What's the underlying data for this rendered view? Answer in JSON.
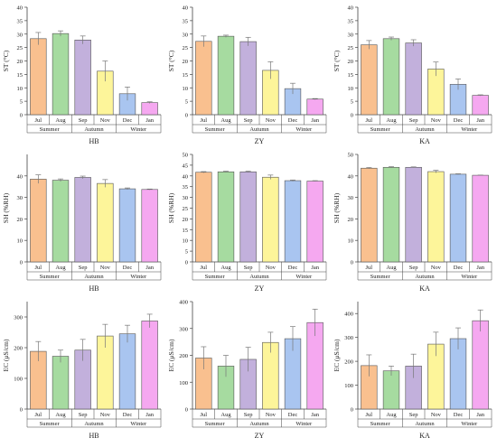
{
  "figure": {
    "months": [
      "Jul",
      "Aug",
      "Sep",
      "Nov",
      "Dec",
      "Jan"
    ],
    "seasons": [
      "Summer",
      "Autumn",
      "Winter"
    ],
    "bar_colors": [
      "#f9c08f",
      "#a6dba0",
      "#c2b0dc",
      "#fdf59a",
      "#a9c5f0",
      "#f5a8f0"
    ],
    "row_order": [
      "ST",
      "SH",
      "EC"
    ],
    "col_order": [
      "HB",
      "ZY",
      "KA"
    ]
  },
  "chart_data": [
    {
      "type": "bar",
      "row": "ST",
      "xlabel": "HB",
      "ylabel": "ST (°C)",
      "ylim": [
        0,
        40
      ],
      "ticks": [
        0,
        5,
        10,
        15,
        20,
        25,
        30,
        35,
        40
      ],
      "categories": [
        "Jul",
        "Aug",
        "Sep",
        "Nov",
        "Dec",
        "Jan"
      ],
      "values": [
        28.3,
        30.2,
        27.8,
        16.2,
        7.8,
        4.5
      ],
      "errors": [
        2.3,
        1.0,
        1.5,
        3.8,
        2.5,
        0.3
      ]
    },
    {
      "type": "bar",
      "row": "ST",
      "xlabel": "ZY",
      "ylabel": "ST (°C)",
      "ylim": [
        0,
        40
      ],
      "ticks": [
        0,
        5,
        10,
        15,
        20,
        25,
        30,
        35,
        40
      ],
      "categories": [
        "Jul",
        "Aug",
        "Sep",
        "Nov",
        "Dec",
        "Jan"
      ],
      "values": [
        27.3,
        29.2,
        27.2,
        16.5,
        9.7,
        5.8
      ],
      "errors": [
        2.0,
        0.4,
        1.6,
        3.2,
        2.0,
        0.2
      ]
    },
    {
      "type": "bar",
      "row": "ST",
      "xlabel": "KA",
      "ylabel": "ST (°C)",
      "ylim": [
        0,
        40
      ],
      "ticks": [
        0,
        5,
        10,
        15,
        20,
        25,
        30,
        35,
        40
      ],
      "categories": [
        "Jul",
        "Aug",
        "Sep",
        "Nov",
        "Dec",
        "Jan"
      ],
      "values": [
        26.0,
        28.3,
        26.7,
        17.0,
        11.3,
        7.2
      ],
      "errors": [
        1.6,
        0.6,
        1.2,
        2.6,
        2.0,
        0.2
      ]
    },
    {
      "type": "bar",
      "row": "SH",
      "xlabel": "HB",
      "ylabel": "SH (%RH)",
      "ylim": [
        0,
        50
      ],
      "ticks": [
        0,
        10,
        20,
        30,
        40
      ],
      "categories": [
        "Jul",
        "Aug",
        "Sep",
        "Nov",
        "Dec",
        "Jan"
      ],
      "values": [
        38.5,
        38.0,
        39.3,
        36.5,
        34.0,
        33.7
      ],
      "errors": [
        2.0,
        0.6,
        0.6,
        1.8,
        0.4,
        0.2
      ]
    },
    {
      "type": "bar",
      "row": "SH",
      "xlabel": "ZY",
      "ylabel": "SH (%RH)",
      "ylim": [
        0,
        50
      ],
      "ticks": [
        0,
        5,
        10,
        15,
        20,
        25,
        30,
        35,
        40,
        45,
        50
      ],
      "categories": [
        "Jul",
        "Aug",
        "Sep",
        "Nov",
        "Dec",
        "Jan"
      ],
      "values": [
        41.7,
        41.9,
        41.9,
        39.4,
        37.8,
        37.6
      ],
      "errors": [
        0.3,
        0.3,
        0.3,
        1.0,
        0.3,
        0.2
      ]
    },
    {
      "type": "bar",
      "row": "SH",
      "xlabel": "KA",
      "ylabel": "SH (%RH)",
      "ylim": [
        0,
        50
      ],
      "ticks": [
        0,
        10,
        20,
        30,
        40,
        50
      ],
      "categories": [
        "Jul",
        "Aug",
        "Sep",
        "Nov",
        "Dec",
        "Jan"
      ],
      "values": [
        43.6,
        44.0,
        44.0,
        42.0,
        40.8,
        40.3
      ],
      "errors": [
        0.3,
        0.3,
        0.2,
        0.6,
        0.2,
        0.1
      ]
    },
    {
      "type": "bar",
      "row": "EC",
      "xlabel": "HB",
      "ylabel": "EC (μS/cm)",
      "ylim": [
        0,
        350
      ],
      "ticks": [
        0,
        100,
        200,
        300
      ],
      "categories": [
        "Jul",
        "Aug",
        "Sep",
        "Nov",
        "Dec",
        "Jan"
      ],
      "values": [
        188,
        172,
        192,
        238,
        245,
        287
      ],
      "errors": [
        32,
        20,
        35,
        38,
        28,
        22
      ]
    },
    {
      "type": "bar",
      "row": "EC",
      "xlabel": "ZY",
      "ylabel": "EC (μS/cm)",
      "ylim": [
        0,
        400
      ],
      "ticks": [
        0,
        100,
        200,
        300,
        400
      ],
      "categories": [
        "Jul",
        "Aug",
        "Sep",
        "Nov",
        "Dec",
        "Jan"
      ],
      "values": [
        190,
        160,
        185,
        248,
        262,
        322
      ],
      "errors": [
        42,
        40,
        45,
        38,
        45,
        50
      ]
    },
    {
      "type": "bar",
      "row": "EC",
      "xlabel": "KA",
      "ylabel": "EC (μS/cm)",
      "ylim": [
        0,
        450
      ],
      "ticks": [
        0,
        100,
        200,
        300,
        400
      ],
      "categories": [
        "Jul",
        "Aug",
        "Sep",
        "Nov",
        "Dec",
        "Jan"
      ],
      "values": [
        182,
        160,
        180,
        272,
        295,
        370
      ],
      "errors": [
        45,
        20,
        50,
        50,
        45,
        45
      ]
    }
  ]
}
